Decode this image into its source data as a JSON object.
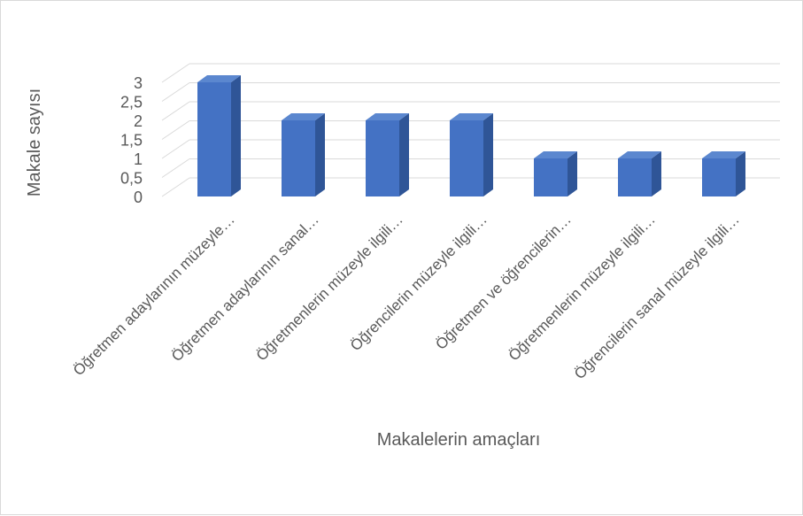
{
  "chart_data": {
    "type": "bar",
    "categories": [
      "Öğretmen adaylarının müzeyle…",
      "Öğretmen adaylarının sanal…",
      "Öğretmenlerin müzeyle ilgili…",
      "Öğrencilerin müzeyle ilgili…",
      "Öğretmen ve öğrencilerin…",
      "Öğretmenlerin müzeyle ilgili…",
      "Öğrencilerin sanal müzeyle ilgili…"
    ],
    "values": [
      3,
      2,
      2,
      2,
      1,
      1,
      1
    ],
    "ylabel": "Makale sayısı",
    "xlabel": "Makalelerin amaçları",
    "ylim": [
      0,
      3
    ],
    "yticks": [
      "0",
      "0,5",
      "1",
      "1,5",
      "2",
      "2,5",
      "3"
    ],
    "grid": true,
    "style": "3d-column",
    "colors": {
      "front": "#4472c4",
      "side": "#2f5597",
      "top": "#5b87cf",
      "grid": "#d9d9d9"
    }
  }
}
